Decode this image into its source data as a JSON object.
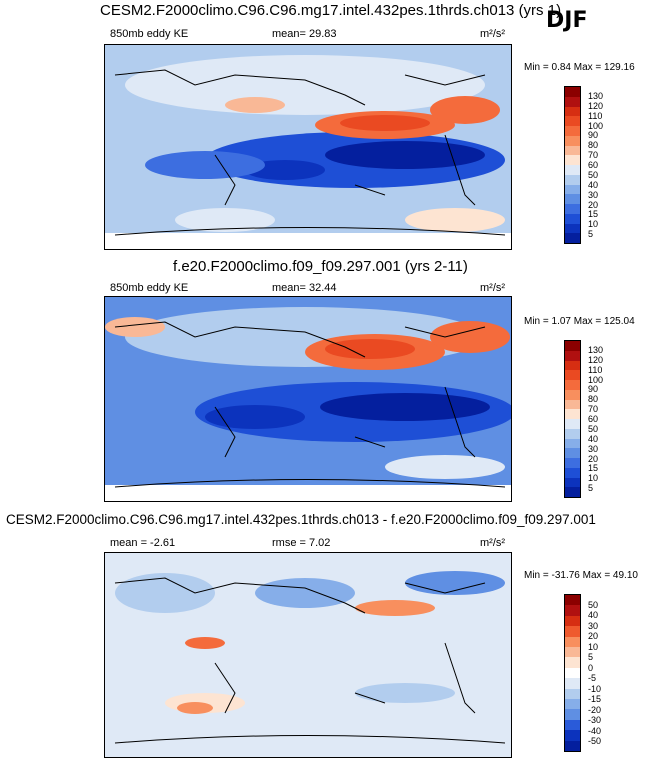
{
  "season": "DJF",
  "chart_data": [
    {
      "type": "heatmap",
      "title": "CESM2.F2000climo.C96.C96.mg17.intel.432pes.1thrds.ch013 (yrs 1)",
      "field_label": "850mb eddy KE",
      "stat_text": "mean=  29.83",
      "units": "m²/s²",
      "minmax_text": "Min =   0.84 Max = 129.16",
      "levels": [
        "130",
        "120",
        "110",
        "100",
        "90",
        "80",
        "70",
        "60",
        "50",
        "40",
        "30",
        "20",
        "15",
        "10",
        "5"
      ],
      "colors": [
        "#8b0000",
        "#b01010",
        "#d62e12",
        "#ea4a22",
        "#f46b3c",
        "#f88f5e",
        "#f9b896",
        "#fde4d2",
        "#dfe9f6",
        "#b2cdee",
        "#86aee9",
        "#5f8fe3",
        "#3d6ee0",
        "#1e4fd6",
        "#0c33bd",
        "#041f9e"
      ]
    },
    {
      "type": "heatmap",
      "title": "f.e20.F2000climo.f09_f09.297.001 (yrs 2-11)",
      "field_label": "850mb eddy KE",
      "stat_text": "mean=  32.44",
      "units": "m²/s²",
      "minmax_text": "Min =   1.07 Max = 125.04",
      "levels": [
        "130",
        "120",
        "110",
        "100",
        "90",
        "80",
        "70",
        "60",
        "50",
        "40",
        "30",
        "20",
        "15",
        "10",
        "5"
      ],
      "colors": [
        "#8b0000",
        "#b01010",
        "#d62e12",
        "#ea4a22",
        "#f46b3c",
        "#f88f5e",
        "#f9b896",
        "#fde4d2",
        "#dfe9f6",
        "#b2cdee",
        "#86aee9",
        "#5f8fe3",
        "#3d6ee0",
        "#1e4fd6",
        "#0c33bd",
        "#041f9e"
      ]
    },
    {
      "type": "heatmap",
      "title": "CESM2.F2000climo.C96.C96.mg17.intel.432pes.1thrds.ch013 - f.e20.F2000climo.f09_f09.297.001",
      "stat_text": "mean =  -2.61",
      "stat2_text": "rmse =   7.02",
      "units": "m²/s²",
      "minmax_text": "Min = -31.76 Max =  49.10",
      "levels": [
        "50",
        "40",
        "30",
        "20",
        "10",
        "5",
        "0",
        "-5",
        "-10",
        "-15",
        "-20",
        "-30",
        "-40",
        "-50"
      ],
      "colors": [
        "#8b0000",
        "#b01010",
        "#d62e12",
        "#ef5a2e",
        "#f88f5e",
        "#f9b896",
        "#fde4d2",
        "#ffffff",
        "#dfe9f6",
        "#b2cdee",
        "#86aee9",
        "#5f8fe3",
        "#2a5bd9",
        "#0c33bd",
        "#041f9e"
      ]
    }
  ]
}
